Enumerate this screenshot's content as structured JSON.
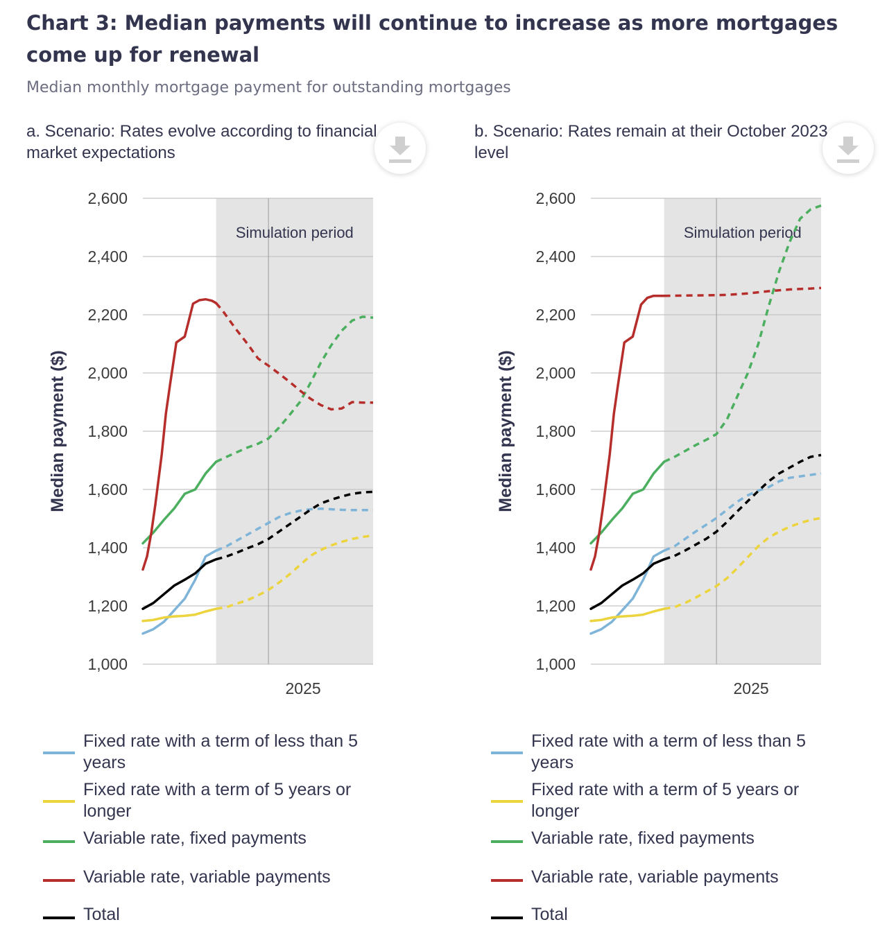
{
  "title": "Chart 3: Median payments will continue to increase as more mortgages come up for renewal",
  "subtitle": "Median monthly mortgage payment for outstanding mortgages",
  "colors": {
    "fixed_short": "#7fb4d9",
    "fixed_long": "#ecd43f",
    "variable_fixed": "#4caf5f",
    "variable_variable": "#b52e2b",
    "total": "#000000",
    "simulation_shade": "#e4e4e4"
  },
  "icons": {
    "download": "download-icon"
  },
  "legend": [
    {
      "key": "fixed_short",
      "label": "Fixed rate with a term of less than 5 years"
    },
    {
      "key": "fixed_long",
      "label": "Fixed rate with a term of 5 years or longer"
    },
    {
      "key": "variable_fixed",
      "label": "Variable rate, fixed payments"
    },
    {
      "key": "variable_variable",
      "label": "Variable rate, variable payments"
    },
    {
      "key": "total",
      "label": "Total"
    }
  ],
  "chart_data": [
    {
      "type": "line",
      "title": "a. Scenario: Rates evolve according to financial market expectations",
      "ylabel": "Median payment ($)",
      "xlabel": "",
      "ylim": [
        1000,
        2600
      ],
      "yticks": [
        1000,
        1200,
        1400,
        1600,
        1800,
        2000,
        2200,
        2400,
        2600
      ],
      "ytick_labels": [
        "1,000",
        "1,200",
        "1,400",
        "1,600",
        "1,800",
        "2,000",
        "2,200",
        "2,400",
        "2,600"
      ],
      "xlim": [
        2022.0,
        2027.5
      ],
      "xticks": [
        2025
      ],
      "xtick_labels": [
        "2025"
      ],
      "simulation_period": {
        "start": 2023.75,
        "end": 2027.5,
        "label": "Simulation period"
      },
      "series": [
        {
          "key": "fixed_short",
          "name": "Fixed rate with a term of less than 5 years",
          "x": [
            2022.0,
            2022.25,
            2022.5,
            2022.75,
            2023.0,
            2023.25,
            2023.5,
            2023.75,
            2024.0,
            2024.25,
            2024.5,
            2024.75,
            2025.0,
            2025.25,
            2025.5,
            2025.75,
            2026.0,
            2026.25,
            2026.5,
            2026.75,
            2027.0,
            2027.25,
            2027.5
          ],
          "values": [
            1105,
            1120,
            1145,
            1185,
            1225,
            1290,
            1370,
            1390,
            1405,
            1425,
            1445,
            1465,
            1485,
            1505,
            1518,
            1527,
            1532,
            1534,
            1532,
            1530,
            1529,
            1529,
            1529
          ],
          "sim_from": 2023.75
        },
        {
          "key": "fixed_long",
          "name": "Fixed rate with a term of 5 years or longer",
          "x": [
            2022.0,
            2022.25,
            2022.5,
            2022.75,
            2023.0,
            2023.25,
            2023.5,
            2023.75,
            2024.0,
            2024.25,
            2024.5,
            2024.75,
            2025.0,
            2025.25,
            2025.5,
            2025.75,
            2026.0,
            2026.25,
            2026.5,
            2026.75,
            2027.0,
            2027.25,
            2027.5
          ],
          "values": [
            1148,
            1152,
            1160,
            1164,
            1166,
            1170,
            1181,
            1190,
            1196,
            1208,
            1220,
            1236,
            1255,
            1280,
            1308,
            1340,
            1372,
            1392,
            1408,
            1420,
            1430,
            1437,
            1442
          ],
          "sim_from": 2023.75
        },
        {
          "key": "variable_fixed",
          "name": "Variable rate, fixed payments",
          "x": [
            2022.0,
            2022.25,
            2022.5,
            2022.75,
            2023.0,
            2023.25,
            2023.5,
            2023.75,
            2024.0,
            2024.25,
            2024.5,
            2024.75,
            2025.0,
            2025.25,
            2025.5,
            2025.75,
            2026.0,
            2026.25,
            2026.5,
            2026.75,
            2027.0,
            2027.25,
            2027.5
          ],
          "values": [
            1415,
            1452,
            1495,
            1535,
            1585,
            1600,
            1655,
            1695,
            1712,
            1728,
            1744,
            1757,
            1775,
            1812,
            1855,
            1900,
            1965,
            2035,
            2095,
            2145,
            2180,
            2193,
            2190
          ],
          "sim_from": 2023.75
        },
        {
          "key": "variable_variable",
          "name": "Variable rate, variable payments",
          "x": [
            2022.0,
            2022.1,
            2022.2,
            2022.3,
            2022.45,
            2022.55,
            2022.65,
            2022.8,
            2023.0,
            2023.2,
            2023.35,
            2023.5,
            2023.65,
            2023.75,
            2023.9,
            2024.2,
            2024.5,
            2024.75,
            2025.0,
            2025.25,
            2025.5,
            2025.75,
            2026.0,
            2026.25,
            2026.5,
            2026.75,
            2027.0,
            2027.25,
            2027.5
          ],
          "values": [
            1325,
            1370,
            1450,
            1550,
            1720,
            1860,
            1960,
            2105,
            2125,
            2238,
            2250,
            2253,
            2248,
            2240,
            2215,
            2155,
            2100,
            2050,
            2025,
            1998,
            1970,
            1940,
            1912,
            1890,
            1875,
            1878,
            1900,
            1898,
            1898
          ],
          "sim_from": 2023.75
        },
        {
          "key": "total",
          "name": "Total",
          "x": [
            2022.0,
            2022.25,
            2022.5,
            2022.75,
            2023.0,
            2023.25,
            2023.5,
            2023.75,
            2024.0,
            2024.25,
            2024.5,
            2024.75,
            2025.0,
            2025.25,
            2025.5,
            2025.75,
            2026.0,
            2026.25,
            2026.5,
            2026.75,
            2027.0,
            2027.25,
            2027.5
          ],
          "values": [
            1190,
            1210,
            1240,
            1270,
            1290,
            1312,
            1345,
            1360,
            1370,
            1383,
            1398,
            1412,
            1430,
            1455,
            1480,
            1505,
            1530,
            1552,
            1565,
            1576,
            1585,
            1590,
            1592
          ],
          "sim_from": 2023.75
        }
      ]
    },
    {
      "type": "line",
      "title": "b. Scenario: Rates remain at their October 2023 level",
      "ylabel": "Median payment ($)",
      "xlabel": "",
      "ylim": [
        1000,
        2600
      ],
      "yticks": [
        1000,
        1200,
        1400,
        1600,
        1800,
        2000,
        2200,
        2400,
        2600
      ],
      "ytick_labels": [
        "1,000",
        "1,200",
        "1,400",
        "1,600",
        "1,800",
        "2,000",
        "2,200",
        "2,400",
        "2,600"
      ],
      "xlim": [
        2022.0,
        2027.5
      ],
      "xticks": [
        2025
      ],
      "xtick_labels": [
        "2025"
      ],
      "simulation_period": {
        "start": 2023.75,
        "end": 2027.5,
        "label": "Simulation period"
      },
      "series": [
        {
          "key": "fixed_short",
          "name": "Fixed rate with a term of less than 5 years",
          "x": [
            2022.0,
            2022.25,
            2022.5,
            2022.75,
            2023.0,
            2023.25,
            2023.5,
            2023.75,
            2024.0,
            2024.25,
            2024.5,
            2024.75,
            2025.0,
            2025.25,
            2025.5,
            2025.75,
            2026.0,
            2026.25,
            2026.5,
            2026.75,
            2027.0,
            2027.25,
            2027.5
          ],
          "values": [
            1105,
            1120,
            1145,
            1185,
            1225,
            1290,
            1370,
            1390,
            1405,
            1430,
            1455,
            1478,
            1502,
            1530,
            1558,
            1580,
            1596,
            1608,
            1628,
            1640,
            1645,
            1650,
            1655
          ],
          "sim_from": 2023.75
        },
        {
          "key": "fixed_long",
          "name": "Fixed rate with a term of 5 years or longer",
          "x": [
            2022.0,
            2022.25,
            2022.5,
            2022.75,
            2023.0,
            2023.25,
            2023.5,
            2023.75,
            2024.0,
            2024.25,
            2024.5,
            2024.75,
            2025.0,
            2025.25,
            2025.5,
            2025.75,
            2026.0,
            2026.25,
            2026.5,
            2026.75,
            2027.0,
            2027.25,
            2027.5
          ],
          "values": [
            1148,
            1152,
            1160,
            1164,
            1166,
            1170,
            1181,
            1190,
            1196,
            1210,
            1228,
            1248,
            1268,
            1295,
            1330,
            1368,
            1405,
            1435,
            1455,
            1472,
            1485,
            1495,
            1502
          ],
          "sim_from": 2023.75
        },
        {
          "key": "variable_fixed",
          "name": "Variable rate, fixed payments",
          "x": [
            2022.0,
            2022.25,
            2022.5,
            2022.75,
            2023.0,
            2023.25,
            2023.5,
            2023.75,
            2024.0,
            2024.25,
            2024.5,
            2024.75,
            2025.0,
            2025.25,
            2025.5,
            2025.75,
            2026.0,
            2026.25,
            2026.5,
            2026.75,
            2027.0,
            2027.25,
            2027.5
          ],
          "values": [
            1415,
            1452,
            1495,
            1535,
            1585,
            1600,
            1655,
            1695,
            1712,
            1732,
            1752,
            1770,
            1790,
            1840,
            1920,
            2000,
            2100,
            2230,
            2350,
            2450,
            2530,
            2562,
            2575
          ],
          "sim_from": 2023.75
        },
        {
          "key": "variable_variable",
          "name": "Variable rate, variable payments",
          "x": [
            2022.0,
            2022.1,
            2022.2,
            2022.3,
            2022.45,
            2022.55,
            2022.65,
            2022.8,
            2023.0,
            2023.2,
            2023.35,
            2023.5,
            2023.65,
            2023.75,
            2024.25,
            2024.75,
            2025.25,
            2025.75,
            2026.25,
            2026.75,
            2027.25,
            2027.5
          ],
          "values": [
            1325,
            1370,
            1450,
            1550,
            1720,
            1860,
            1960,
            2105,
            2125,
            2235,
            2258,
            2265,
            2265,
            2265,
            2266,
            2267,
            2268,
            2273,
            2281,
            2287,
            2290,
            2292
          ],
          "sim_from": 2023.75
        },
        {
          "key": "total",
          "name": "Total",
          "x": [
            2022.0,
            2022.25,
            2022.5,
            2022.75,
            2023.0,
            2023.25,
            2023.5,
            2023.75,
            2024.0,
            2024.25,
            2024.5,
            2024.75,
            2025.0,
            2025.25,
            2025.5,
            2025.75,
            2026.0,
            2026.25,
            2026.5,
            2026.75,
            2027.0,
            2027.25,
            2027.5
          ],
          "values": [
            1190,
            1210,
            1240,
            1270,
            1290,
            1312,
            1345,
            1360,
            1372,
            1390,
            1410,
            1430,
            1455,
            1488,
            1525,
            1560,
            1595,
            1628,
            1655,
            1675,
            1695,
            1712,
            1718
          ],
          "sim_from": 2023.75
        }
      ]
    }
  ]
}
